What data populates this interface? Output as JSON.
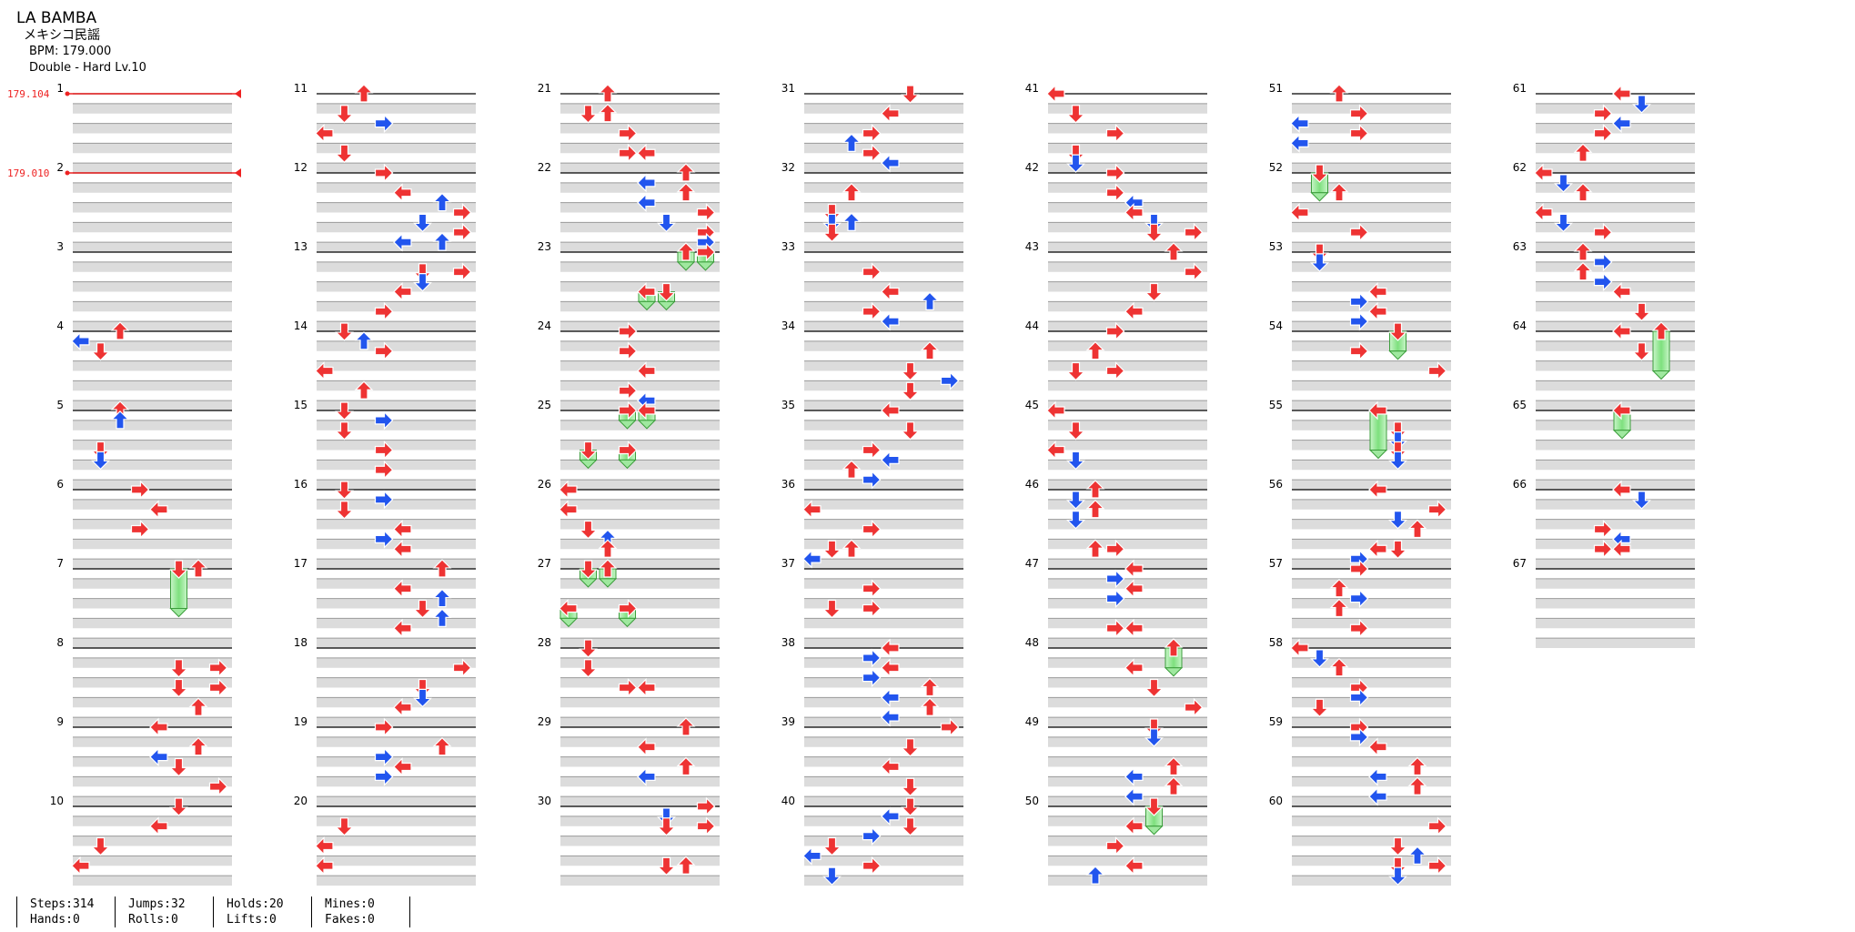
{
  "song": {
    "title": "LA BAMBA",
    "artist": "メキシコ民謡",
    "bpm_text": "BPM: 179.000",
    "difficulty_text": "Double - Hard Lv.10"
  },
  "bpm_changes": [
    {
      "measure": 1,
      "label": "179.104"
    },
    {
      "measure": 2,
      "label": "179.010"
    }
  ],
  "chart_data": {
    "type": "step-chart",
    "mode": "Double",
    "measures": 67,
    "measures_per_column": 10,
    "beats_per_measure": 4,
    "lanes": [
      "left-1",
      "down-1",
      "up-1",
      "right-1",
      "left-2",
      "down-2",
      "up-2",
      "right-2"
    ],
    "lane_colors": {
      "4th": "#ee3333",
      "8th": "#2255ee",
      "hold": "#66dd66"
    },
    "notes": [
      [
        4,
        0,
        2
      ],
      [
        4,
        0.5,
        0
      ],
      [
        4,
        1,
        1
      ],
      [
        5,
        0,
        2
      ],
      [
        5,
        0.5,
        2
      ],
      [
        5,
        2,
        1
      ],
      [
        5,
        2.5,
        1
      ],
      [
        6,
        0,
        3
      ],
      [
        6,
        1,
        4
      ],
      [
        6,
        2,
        3
      ],
      [
        7,
        0,
        6
      ],
      [
        7,
        0,
        5,
        2
      ],
      [
        8,
        1,
        5
      ],
      [
        8,
        1,
        7
      ],
      [
        8,
        2,
        5
      ],
      [
        8,
        2,
        7
      ],
      [
        8,
        3,
        6
      ],
      [
        9,
        0,
        4
      ],
      [
        9,
        1,
        6
      ],
      [
        9,
        1.5,
        4
      ],
      [
        9,
        2,
        5
      ],
      [
        9,
        3,
        7
      ],
      [
        10,
        0,
        5
      ],
      [
        10,
        1,
        4
      ],
      [
        10,
        2,
        1
      ],
      [
        10,
        3,
        0
      ],
      [
        11,
        0,
        2
      ],
      [
        11,
        1,
        1
      ],
      [
        11,
        1.5,
        3
      ],
      [
        11,
        2,
        0
      ],
      [
        11,
        3,
        1
      ],
      [
        12,
        0,
        3
      ],
      [
        12,
        1,
        4
      ],
      [
        12,
        1.5,
        6
      ],
      [
        12,
        2,
        7
      ],
      [
        12,
        2.5,
        5
      ],
      [
        12,
        3,
        7
      ],
      [
        12,
        3.5,
        4
      ],
      [
        12,
        3.5,
        6
      ],
      [
        13,
        1,
        7
      ],
      [
        13,
        1,
        5
      ],
      [
        13,
        1.5,
        5
      ],
      [
        13,
        2,
        4
      ],
      [
        13,
        3,
        3
      ],
      [
        14,
        0,
        1
      ],
      [
        14,
        0.5,
        2
      ],
      [
        14,
        1,
        3
      ],
      [
        14,
        2,
        0
      ],
      [
        14,
        3,
        2
      ],
      [
        15,
        0,
        1
      ],
      [
        15,
        0.5,
        3
      ],
      [
        15,
        1,
        1
      ],
      [
        15,
        2,
        3
      ],
      [
        15,
        3,
        3
      ],
      [
        16,
        0,
        1
      ],
      [
        16,
        0.5,
        3
      ],
      [
        16,
        1,
        1
      ],
      [
        16,
        2,
        4
      ],
      [
        16,
        2.5,
        3
      ],
      [
        16,
        3,
        4
      ],
      [
        17,
        0,
        6
      ],
      [
        17,
        1,
        4
      ],
      [
        17,
        1.5,
        6
      ],
      [
        17,
        2,
        5
      ],
      [
        17,
        2.5,
        6
      ],
      [
        17,
        3,
        4
      ],
      [
        18,
        1,
        7
      ],
      [
        18,
        2,
        5
      ],
      [
        18,
        2.5,
        5
      ],
      [
        18,
        3,
        4
      ],
      [
        19,
        0,
        3
      ],
      [
        19,
        1,
        6
      ],
      [
        19,
        1.5,
        3
      ],
      [
        19,
        2,
        4
      ],
      [
        19,
        2.5,
        3
      ],
      [
        20,
        1,
        1
      ],
      [
        20,
        2,
        0
      ],
      [
        20,
        3,
        0
      ],
      [
        21,
        0,
        2
      ],
      [
        21,
        1,
        1
      ],
      [
        21,
        1,
        2
      ],
      [
        21,
        2,
        3
      ],
      [
        21,
        3,
        3
      ],
      [
        21,
        3,
        4
      ],
      [
        22,
        0,
        6
      ],
      [
        22,
        0.5,
        4
      ],
      [
        22,
        1,
        6
      ],
      [
        22,
        1.5,
        4
      ],
      [
        22,
        2,
        7
      ],
      [
        22,
        2.5,
        5
      ],
      [
        22,
        3,
        7
      ],
      [
        22,
        3.5,
        7
      ],
      [
        23,
        0,
        6,
        0.5
      ],
      [
        23,
        0,
        7,
        0.5
      ],
      [
        23,
        2,
        4,
        0.5
      ],
      [
        23,
        2,
        5,
        0.5
      ],
      [
        24,
        0,
        3
      ],
      [
        24,
        1,
        3
      ],
      [
        24,
        2,
        4
      ],
      [
        24,
        3,
        3
      ],
      [
        24,
        3.5,
        4
      ],
      [
        25,
        0,
        3,
        0.5
      ],
      [
        25,
        0,
        4,
        0.5
      ],
      [
        25,
        2,
        1,
        0.5
      ],
      [
        25,
        2,
        3,
        0.5
      ],
      [
        26,
        0,
        0
      ],
      [
        26,
        1,
        0
      ],
      [
        26,
        2,
        1
      ],
      [
        26,
        2.5,
        2
      ],
      [
        26,
        3,
        2
      ],
      [
        27,
        0,
        1,
        0.5
      ],
      [
        27,
        0,
        2,
        0.5
      ],
      [
        27,
        2,
        0,
        0.5
      ],
      [
        27,
        2,
        3,
        0.5
      ],
      [
        28,
        0,
        1
      ],
      [
        28,
        1,
        1
      ],
      [
        28,
        2,
        3
      ],
      [
        28,
        2,
        4
      ],
      [
        29,
        0,
        6
      ],
      [
        29,
        1,
        4
      ],
      [
        29,
        2,
        6
      ],
      [
        29,
        2.5,
        4
      ],
      [
        30,
        0,
        7
      ],
      [
        30,
        0.5,
        5
      ],
      [
        30,
        1,
        5
      ],
      [
        30,
        1,
        7
      ],
      [
        30,
        3,
        5
      ],
      [
        30,
        3,
        6
      ],
      [
        31,
        0,
        5
      ],
      [
        31,
        1,
        4
      ],
      [
        31,
        2,
        3
      ],
      [
        31,
        2.5,
        2
      ],
      [
        31,
        3,
        3
      ],
      [
        31,
        3.5,
        4
      ],
      [
        32,
        1,
        2
      ],
      [
        32,
        2,
        1
      ],
      [
        32,
        2.5,
        1
      ],
      [
        32,
        2.5,
        2
      ],
      [
        32,
        3,
        1
      ],
      [
        33,
        1,
        3
      ],
      [
        33,
        2,
        4
      ],
      [
        33,
        2.5,
        6
      ],
      [
        33,
        3,
        3
      ],
      [
        33,
        3.5,
        4
      ],
      [
        34,
        1,
        6
      ],
      [
        34,
        2,
        5
      ],
      [
        34,
        2.5,
        7
      ],
      [
        34,
        3,
        5
      ],
      [
        35,
        0,
        4
      ],
      [
        35,
        1,
        5
      ],
      [
        35,
        2,
        3
      ],
      [
        35,
        2.5,
        4
      ],
      [
        35,
        3,
        2
      ],
      [
        35,
        3.5,
        3
      ],
      [
        36,
        1,
        0
      ],
      [
        36,
        2,
        3
      ],
      [
        36,
        3,
        1
      ],
      [
        36,
        3,
        2
      ],
      [
        36,
        3.5,
        0
      ],
      [
        37,
        1,
        3
      ],
      [
        37,
        2,
        1
      ],
      [
        37,
        2,
        3
      ],
      [
        38,
        0,
        4
      ],
      [
        38,
        0.5,
        3
      ],
      [
        38,
        1,
        4
      ],
      [
        38,
        1.5,
        3
      ],
      [
        38,
        2,
        6
      ],
      [
        38,
        2.5,
        4
      ],
      [
        38,
        3,
        6
      ],
      [
        38,
        3.5,
        4
      ],
      [
        39,
        0,
        7
      ],
      [
        39,
        1,
        5
      ],
      [
        39,
        2,
        4
      ],
      [
        39,
        3,
        5
      ],
      [
        40,
        0,
        5
      ],
      [
        40,
        0.5,
        4
      ],
      [
        40,
        1,
        5
      ],
      [
        40,
        1.5,
        3
      ],
      [
        40,
        2,
        1
      ],
      [
        40,
        2.5,
        0
      ],
      [
        40,
        3,
        3
      ],
      [
        40,
        3.5,
        1
      ],
      [
        41,
        0,
        0
      ],
      [
        41,
        1,
        1
      ],
      [
        41,
        2,
        3
      ],
      [
        41,
        3,
        1
      ],
      [
        41,
        3.5,
        1
      ],
      [
        42,
        0,
        3
      ],
      [
        42,
        1,
        3
      ],
      [
        42,
        1.5,
        4
      ],
      [
        42,
        2,
        4
      ],
      [
        42,
        2.5,
        5
      ],
      [
        42,
        3,
        5
      ],
      [
        42,
        3,
        7
      ],
      [
        43,
        0,
        6
      ],
      [
        43,
        1,
        7
      ],
      [
        43,
        2,
        5
      ],
      [
        43,
        3,
        4
      ],
      [
        44,
        0,
        3
      ],
      [
        44,
        1,
        2
      ],
      [
        44,
        2,
        3
      ],
      [
        44,
        2,
        1
      ],
      [
        45,
        0,
        0
      ],
      [
        45,
        1,
        1
      ],
      [
        45,
        2,
        0
      ],
      [
        45,
        2.5,
        1
      ],
      [
        46,
        0,
        2
      ],
      [
        46,
        0.5,
        1
      ],
      [
        46,
        1,
        2
      ],
      [
        46,
        1.5,
        1
      ],
      [
        46,
        3,
        2
      ],
      [
        46,
        3,
        3
      ],
      [
        47,
        0,
        4
      ],
      [
        47,
        0.5,
        3
      ],
      [
        47,
        1,
        4
      ],
      [
        47,
        1.5,
        3
      ],
      [
        47,
        3,
        3
      ],
      [
        47,
        3,
        4
      ],
      [
        48,
        0,
        6,
        1
      ],
      [
        48,
        1,
        4
      ],
      [
        48,
        2,
        5
      ],
      [
        48,
        3,
        7
      ],
      [
        49,
        0,
        5
      ],
      [
        49,
        0.5,
        5
      ],
      [
        49,
        2,
        6
      ],
      [
        49,
        2.5,
        4
      ],
      [
        49,
        3,
        6
      ],
      [
        49,
        3.5,
        4
      ],
      [
        50,
        0,
        5,
        1
      ],
      [
        50,
        1,
        4
      ],
      [
        50,
        2,
        3
      ],
      [
        50,
        3,
        4
      ],
      [
        50,
        3.5,
        2
      ],
      [
        51,
        0,
        2
      ],
      [
        51,
        1,
        3
      ],
      [
        51,
        1.5,
        0
      ],
      [
        51,
        2,
        3
      ],
      [
        51,
        2.5,
        0
      ],
      [
        52,
        0,
        1,
        1
      ],
      [
        52,
        1,
        2
      ],
      [
        52,
        2,
        0
      ],
      [
        52,
        3,
        3
      ],
      [
        53,
        0,
        1
      ],
      [
        53,
        0.5,
        1
      ],
      [
        53,
        2,
        4
      ],
      [
        53,
        2.5,
        3
      ],
      [
        53,
        3,
        4
      ],
      [
        53,
        3.5,
        3
      ],
      [
        54,
        0,
        5,
        1
      ],
      [
        54,
        1,
        3
      ],
      [
        54,
        2,
        7
      ],
      [
        55,
        0,
        4,
        2
      ],
      [
        55,
        1,
        5
      ],
      [
        55,
        1.5,
        5
      ],
      [
        55,
        2,
        5
      ],
      [
        55,
        2.5,
        5
      ],
      [
        56,
        0,
        4
      ],
      [
        56,
        1,
        7
      ],
      [
        56,
        1.5,
        5
      ],
      [
        56,
        2,
        6
      ],
      [
        56,
        3,
        4
      ],
      [
        56,
        3,
        5
      ],
      [
        56,
        3.5,
        3
      ],
      [
        57,
        0,
        3
      ],
      [
        57,
        1,
        2
      ],
      [
        57,
        1.5,
        3
      ],
      [
        57,
        2,
        2
      ],
      [
        57,
        3,
        3
      ],
      [
        58,
        0,
        0
      ],
      [
        58,
        0.5,
        1
      ],
      [
        58,
        1,
        2
      ],
      [
        58,
        2,
        3
      ],
      [
        58,
        2.5,
        3
      ],
      [
        58,
        3,
        1
      ],
      [
        59,
        0,
        3
      ],
      [
        59,
        0.5,
        3
      ],
      [
        59,
        1,
        4
      ],
      [
        59,
        2,
        6
      ],
      [
        59,
        2.5,
        4
      ],
      [
        59,
        3,
        6
      ],
      [
        59,
        3.5,
        4
      ],
      [
        60,
        1,
        7
      ],
      [
        60,
        2,
        5
      ],
      [
        60,
        2.5,
        6
      ],
      [
        60,
        3,
        5
      ],
      [
        60,
        3,
        7
      ],
      [
        60,
        3.5,
        5
      ],
      [
        61,
        0,
        4
      ],
      [
        61,
        0.5,
        5
      ],
      [
        61,
        1,
        3
      ],
      [
        61,
        1.5,
        4
      ],
      [
        61,
        2,
        3
      ],
      [
        61,
        3,
        2
      ],
      [
        62,
        0,
        0
      ],
      [
        62,
        0.5,
        1
      ],
      [
        62,
        1,
        2
      ],
      [
        62,
        2,
        0
      ],
      [
        62,
        2.5,
        1
      ],
      [
        62,
        3,
        3
      ],
      [
        63,
        0,
        2
      ],
      [
        63,
        0.5,
        3
      ],
      [
        63,
        1,
        2
      ],
      [
        63,
        1.5,
        3
      ],
      [
        63,
        2,
        4
      ],
      [
        63,
        3,
        5
      ],
      [
        64,
        0,
        4
      ],
      [
        64,
        0,
        6,
        2
      ],
      [
        64,
        1,
        5
      ],
      [
        65,
        0,
        4,
        1
      ],
      [
        66,
        0,
        4
      ],
      [
        66,
        0.5,
        5
      ],
      [
        66,
        2,
        3
      ],
      [
        66,
        2.5,
        4
      ],
      [
        66,
        3,
        3
      ],
      [
        66,
        3,
        4
      ]
    ]
  },
  "stats": [
    {
      "a": "Steps:314",
      "b": "Hands:0"
    },
    {
      "a": "Jumps:32",
      "b": "Rolls:0"
    },
    {
      "a": "Holds:20",
      "b": "Lifts:0"
    },
    {
      "a": "Mines:0",
      "b": "Fakes:0"
    }
  ]
}
